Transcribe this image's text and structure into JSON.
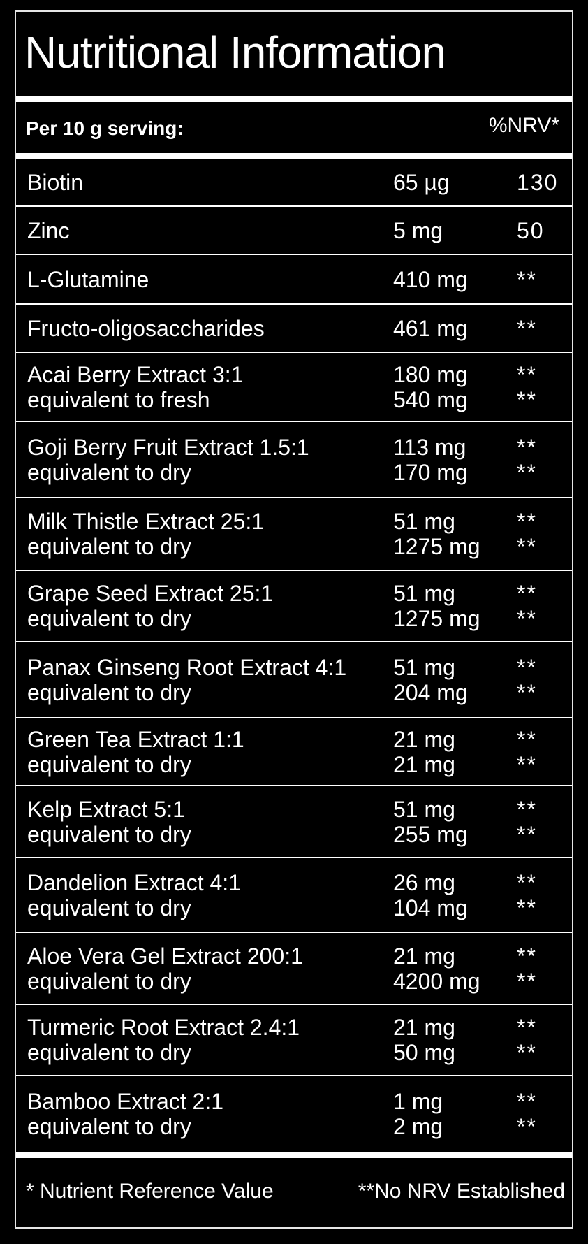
{
  "title": "Nutritional Information",
  "header": {
    "serving": "Per 10 g serving:",
    "nrv": "%NRV*"
  },
  "rows": [
    {
      "name": [
        "Biotin"
      ],
      "amount": [
        "65 µg"
      ],
      "nrv": [
        "130"
      ]
    },
    {
      "name": [
        "Zinc"
      ],
      "amount": [
        "5 mg"
      ],
      "nrv": [
        "50"
      ]
    },
    {
      "name": [
        "L-Glutamine"
      ],
      "amount": [
        "410 mg"
      ],
      "nrv": [
        "**"
      ]
    },
    {
      "name": [
        "Fructo-oligosaccharides"
      ],
      "amount": [
        "461 mg"
      ],
      "nrv": [
        "**"
      ]
    },
    {
      "name": [
        "Acai Berry Extract 3:1",
        "equivalent to fresh"
      ],
      "amount": [
        "180 mg",
        "540 mg"
      ],
      "nrv": [
        "**",
        "**"
      ]
    },
    {
      "name": [
        "Goji Berry Fruit Extract 1.5:1",
        "equivalent to dry"
      ],
      "amount": [
        "113 mg",
        "170 mg"
      ],
      "nrv": [
        "**",
        "**"
      ]
    },
    {
      "name": [
        "Milk Thistle Extract 25:1",
        "equivalent to dry"
      ],
      "amount": [
        "51 mg",
        "1275 mg"
      ],
      "nrv": [
        "**",
        "**"
      ]
    },
    {
      "name": [
        "Grape Seed Extract 25:1",
        "equivalent to dry"
      ],
      "amount": [
        "51 mg",
        "1275 mg"
      ],
      "nrv": [
        "**",
        "**"
      ]
    },
    {
      "name": [
        "Panax Ginseng Root Extract 4:1",
        "equivalent to dry"
      ],
      "amount": [
        "51 mg",
        "204 mg"
      ],
      "nrv": [
        "**",
        "**"
      ]
    },
    {
      "name": [
        "Green Tea Extract 1:1",
        "equivalent to dry"
      ],
      "amount": [
        "21 mg",
        "21 mg"
      ],
      "nrv": [
        "**",
        "**"
      ]
    },
    {
      "name": [
        "Kelp Extract 5:1",
        "equivalent to dry"
      ],
      "amount": [
        "51 mg",
        "255 mg"
      ],
      "nrv": [
        "**",
        "**"
      ]
    },
    {
      "name": [
        "Dandelion Extract 4:1",
        "equivalent to dry"
      ],
      "amount": [
        "26 mg",
        "104 mg"
      ],
      "nrv": [
        "**",
        "**"
      ]
    },
    {
      "name": [
        "Aloe Vera Gel Extract 200:1",
        "equivalent to dry"
      ],
      "amount": [
        "21 mg",
        "4200 mg"
      ],
      "nrv": [
        "**",
        "**"
      ]
    },
    {
      "name": [
        "Turmeric Root Extract 2.4:1",
        "equivalent to dry"
      ],
      "amount": [
        "21 mg",
        "50 mg"
      ],
      "nrv": [
        "**",
        "**"
      ]
    },
    {
      "name": [
        "Bamboo Extract 2:1",
        "equivalent to dry"
      ],
      "amount": [
        "1 mg",
        "2 mg"
      ],
      "nrv": [
        "**",
        "**"
      ]
    }
  ],
  "footer": {
    "note1": "* Nutrient Reference Value",
    "note2": "**No NRV Established"
  }
}
